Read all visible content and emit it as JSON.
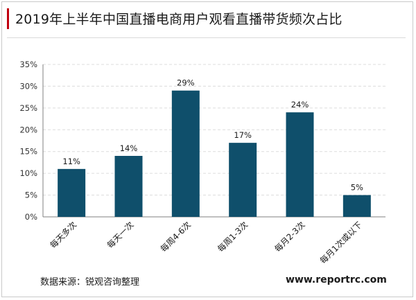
{
  "header": {
    "title": "2019年上半年中国直播电商用户观看直播带货频次占比"
  },
  "footer": {
    "source": "数据来源：锐观咨询整理",
    "brand": "www.reportrc.com"
  },
  "colors": {
    "bar": "#0f4f6b",
    "accent": "#c0000f",
    "grid": "#dcdcdc",
    "axis_text": "#333333"
  },
  "chart_data": {
    "type": "bar",
    "title": "",
    "xlabel": "",
    "ylabel": "",
    "categories": [
      "每天多次",
      "每天一次",
      "每周4-6次",
      "每周1-3次",
      "每月2-3次",
      "每月1次或以下"
    ],
    "values": [
      11,
      14,
      29,
      17,
      24,
      5
    ],
    "value_labels": [
      "11%",
      "14%",
      "29%",
      "17%",
      "24%",
      "5%"
    ],
    "ylim": [
      0,
      35
    ],
    "yticks": [
      0,
      5,
      10,
      15,
      20,
      25,
      30,
      35
    ],
    "ytick_labels": [
      "0%",
      "5%",
      "10%",
      "15%",
      "20%",
      "25%",
      "30%",
      "35%"
    ],
    "grid": true,
    "legend": "none"
  }
}
